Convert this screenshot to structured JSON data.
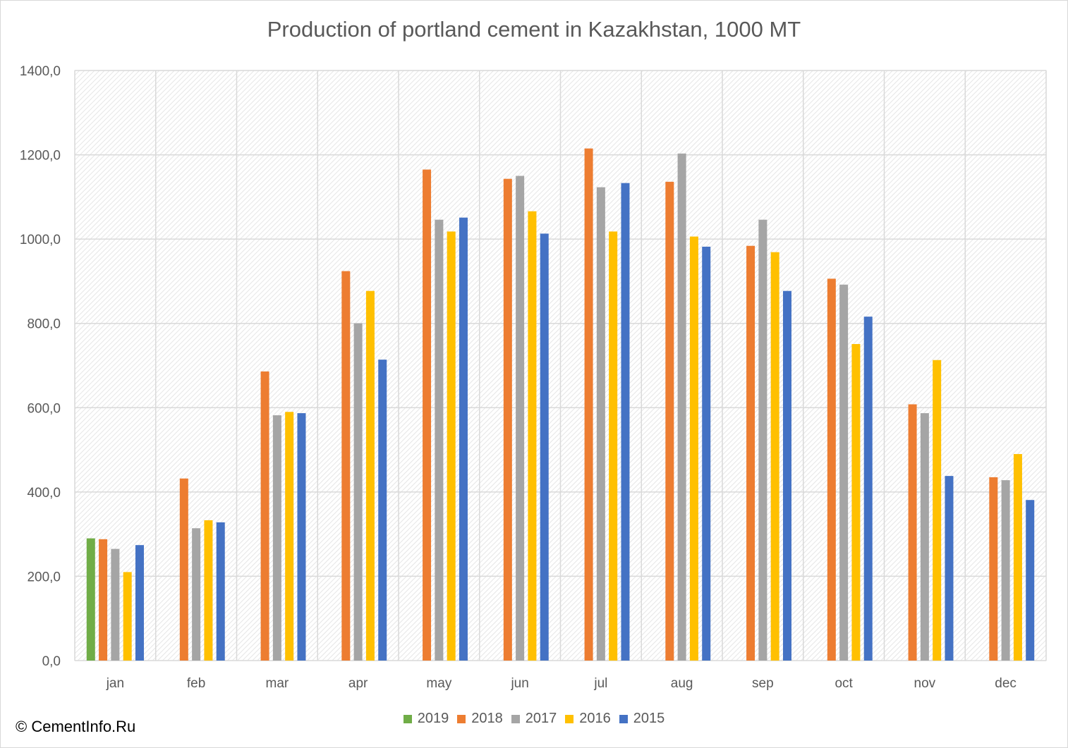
{
  "chart_data": {
    "type": "bar",
    "title": "Production of portland cement in Kazakhstan, 1000 MT",
    "xlabel": "",
    "ylabel": "",
    "ylim": [
      0,
      1400
    ],
    "yticks": [
      "0,0",
      "200,0",
      "400,0",
      "600,0",
      "800,0",
      "1000,0",
      "1200,0",
      "1400,0"
    ],
    "categories": [
      "jan",
      "feb",
      "mar",
      "apr",
      "may",
      "jun",
      "jul",
      "aug",
      "sep",
      "oct",
      "nov",
      "dec"
    ],
    "series": [
      {
        "name": "2019",
        "color": "#70ad47",
        "values": [
          290,
          null,
          null,
          null,
          null,
          null,
          null,
          null,
          null,
          null,
          null,
          null
        ]
      },
      {
        "name": "2018",
        "color": "#ed7d31",
        "values": [
          288,
          432,
          686,
          924,
          1165,
          1143,
          1215,
          1136,
          984,
          906,
          608,
          435
        ]
      },
      {
        "name": "2017",
        "color": "#a5a5a5",
        "values": [
          265,
          314,
          582,
          800,
          1046,
          1150,
          1123,
          1203,
          1046,
          892,
          587,
          428
        ]
      },
      {
        "name": "2016",
        "color": "#ffc000",
        "values": [
          210,
          333,
          590,
          877,
          1018,
          1066,
          1018,
          1006,
          969,
          751,
          713,
          490
        ]
      },
      {
        "name": "2015",
        "color": "#4472c4",
        "values": [
          274,
          328,
          587,
          714,
          1051,
          1013,
          1133,
          982,
          877,
          816,
          438,
          381
        ]
      }
    ],
    "grid": true,
    "legend_position": "bottom"
  },
  "footer": {
    "copyright": "© CementInfo.Ru"
  }
}
